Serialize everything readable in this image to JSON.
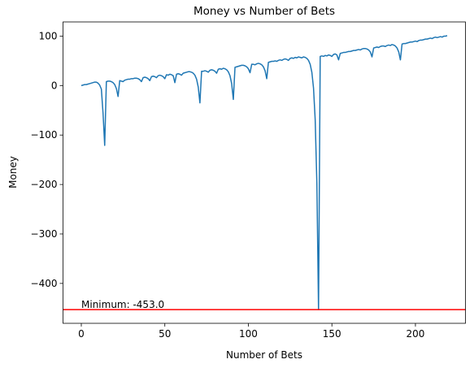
{
  "chart_data": {
    "type": "line",
    "title": "Money vs Number of Bets",
    "x_label": "Number of Bets",
    "y_label": "Money",
    "x": [
      0,
      1,
      2,
      3,
      4,
      5,
      6,
      7,
      8,
      9,
      10,
      11,
      12,
      13,
      14,
      15,
      16,
      17,
      18,
      19,
      20,
      21,
      22,
      23,
      24,
      25,
      26,
      27,
      28,
      29,
      30,
      31,
      32,
      33,
      34,
      35,
      36,
      37,
      38,
      39,
      40,
      41,
      42,
      43,
      44,
      45,
      46,
      47,
      48,
      49,
      50,
      51,
      52,
      53,
      54,
      55,
      56,
      57,
      58,
      59,
      60,
      61,
      62,
      63,
      64,
      65,
      66,
      67,
      68,
      69,
      70,
      71,
      72,
      73,
      74,
      75,
      76,
      77,
      78,
      79,
      80,
      81,
      82,
      83,
      84,
      85,
      86,
      87,
      88,
      89,
      90,
      91,
      92,
      93,
      94,
      95,
      96,
      97,
      98,
      99,
      100,
      101,
      102,
      103,
      104,
      105,
      106,
      107,
      108,
      109,
      110,
      111,
      112,
      113,
      114,
      115,
      116,
      117,
      118,
      119,
      120,
      121,
      122,
      123,
      124,
      125,
      126,
      127,
      128,
      129,
      130,
      131,
      132,
      133,
      134,
      135,
      136,
      137,
      138,
      139,
      140,
      141,
      142,
      143,
      144,
      145,
      146,
      147,
      148,
      149,
      150,
      151,
      152,
      153,
      154,
      155,
      156,
      157,
      158,
      159,
      160,
      161,
      162,
      163,
      164,
      165,
      166,
      167,
      168,
      169,
      170,
      171,
      172,
      173,
      174,
      175,
      176,
      177,
      178,
      179,
      180,
      181,
      182,
      183,
      184,
      185,
      186,
      187,
      188,
      189,
      190,
      191,
      192,
      193,
      194,
      195,
      196,
      197,
      198,
      199,
      200,
      201,
      202,
      203,
      204,
      205,
      206,
      207,
      208,
      209,
      210,
      211,
      212,
      213,
      214,
      215,
      216,
      217,
      218,
      219
    ],
    "values": [
      0,
      1,
      2,
      2,
      3,
      4,
      5,
      6,
      7,
      7,
      5,
      1,
      -7,
      -55,
      -121,
      8,
      9,
      9,
      8,
      6,
      2,
      -6,
      -22,
      10,
      9,
      8,
      11,
      12,
      13,
      13,
      14,
      14,
      15,
      15,
      14,
      12,
      8,
      16,
      17,
      16,
      14,
      10,
      18,
      19,
      18,
      16,
      20,
      21,
      20,
      18,
      14,
      22,
      21,
      23,
      22,
      20,
      6,
      23,
      24,
      23,
      21,
      25,
      26,
      27,
      28,
      28,
      27,
      25,
      21,
      13,
      -3,
      -35,
      29,
      29,
      30,
      29,
      27,
      31,
      32,
      31,
      29,
      25,
      33,
      34,
      33,
      35,
      34,
      32,
      28,
      20,
      4,
      -28,
      37,
      38,
      39,
      40,
      41,
      41,
      40,
      38,
      34,
      26,
      43,
      43,
      42,
      44,
      45,
      44,
      42,
      38,
      30,
      14,
      47,
      48,
      49,
      49,
      50,
      49,
      51,
      52,
      51,
      53,
      54,
      53,
      51,
      55,
      56,
      55,
      57,
      56,
      58,
      57,
      56,
      58,
      57,
      55,
      51,
      43,
      27,
      -5,
      -69,
      -197,
      -453,
      59,
      60,
      59,
      61,
      60,
      62,
      61,
      59,
      63,
      64,
      62,
      52,
      65,
      66,
      67,
      67,
      68,
      69,
      69,
      70,
      71,
      71,
      72,
      73,
      72,
      74,
      75,
      75,
      74,
      72,
      68,
      58,
      76,
      77,
      78,
      77,
      79,
      80,
      80,
      79,
      81,
      82,
      81,
      83,
      82,
      80,
      76,
      68,
      52,
      84,
      85,
      85,
      86,
      87,
      88,
      88,
      89,
      90,
      89,
      91,
      92,
      92,
      93,
      94,
      94,
      95,
      96,
      95,
      97,
      98,
      97,
      98,
      99,
      98,
      100,
      100,
      101
    ],
    "color": "#1f77b4",
    "xlim": [
      -10.95,
      229.95
    ],
    "xticks": [
      0,
      50,
      100,
      150,
      200
    ],
    "ylim": [
      -480.7,
      128.7
    ],
    "yticks": [
      {
        "value": -400,
        "label": "−400"
      },
      {
        "value": -300,
        "label": "−300"
      },
      {
        "value": -200,
        "label": "−200"
      },
      {
        "value": -100,
        "label": "−100"
      },
      0,
      100
    ],
    "hline": {
      "value": -453,
      "color": "#ff0000",
      "label": "Minimum: -453.0"
    },
    "grid": false
  }
}
